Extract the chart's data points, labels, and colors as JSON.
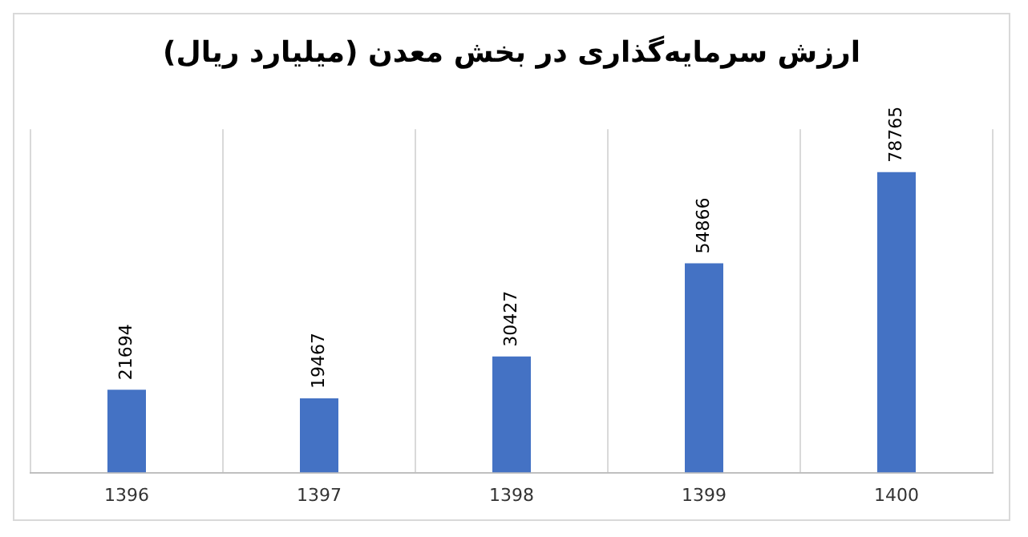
{
  "chart_data": {
    "type": "bar",
    "title": "ارزش سرمایه‌گذاری در بخش معدن (میلیارد ریال)",
    "categories": [
      "1396",
      "1397",
      "1398",
      "1399",
      "1400"
    ],
    "values": [
      21694,
      19467,
      30427,
      54866,
      78765
    ],
    "color": "#4472c4",
    "data_labels": true,
    "grid": "x",
    "tick_labels": "x",
    "legend": false
  }
}
